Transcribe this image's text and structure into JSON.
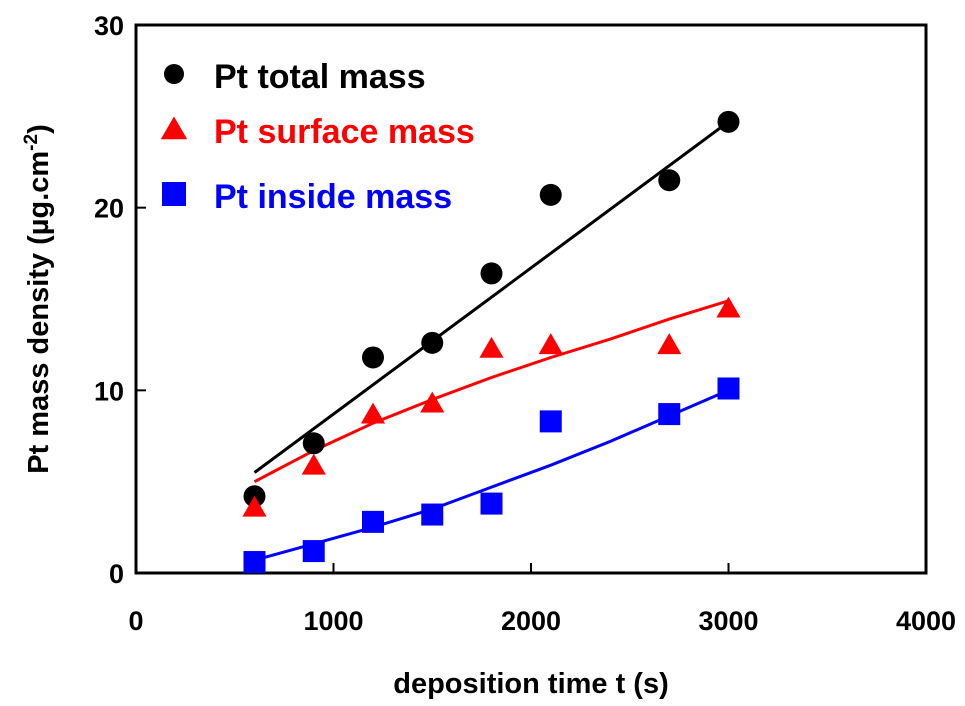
{
  "chart_data": {
    "type": "scatter",
    "title": "",
    "xlabel": "deposition time t (s)",
    "ylabel_main": "Pt mass density (µg.cm",
    "ylabel_sup": "-2",
    "ylabel_close": ")",
    "xlim": [
      0,
      4000
    ],
    "ylim": [
      0,
      30
    ],
    "xticks": [
      0,
      1000,
      2000,
      3000,
      4000
    ],
    "yticks": [
      0,
      10,
      20,
      30
    ],
    "grid": false,
    "legend_position": "top-left",
    "series": [
      {
        "name": "Pt total mass",
        "marker": "circle",
        "color": "#000000",
        "x": [
          600,
          900,
          1200,
          1500,
          1800,
          2100,
          2700,
          3000
        ],
        "y": [
          4.2,
          7.1,
          11.8,
          12.6,
          16.4,
          20.7,
          21.5,
          24.7
        ],
        "fit": {
          "kind": "linear",
          "x": [
            600,
            3000
          ],
          "y": [
            5.5,
            24.7
          ]
        }
      },
      {
        "name": "Pt surface mass",
        "marker": "triangle",
        "color": "#ff0000",
        "x": [
          600,
          900,
          1200,
          1500,
          1800,
          2100,
          2700,
          3000
        ],
        "y": [
          3.6,
          5.9,
          8.7,
          9.3,
          12.3,
          12.5,
          12.5,
          14.5
        ],
        "fit": {
          "kind": "curve",
          "x": [
            600,
            900,
            1200,
            1500,
            1800,
            2100,
            2400,
            2700,
            3000
          ],
          "y": [
            5.0,
            6.7,
            8.2,
            9.5,
            10.7,
            11.8,
            12.8,
            13.9,
            14.9
          ]
        }
      },
      {
        "name": "Pt inside mass",
        "marker": "square",
        "color": "#0000ff",
        "x": [
          600,
          900,
          1200,
          1500,
          1800,
          2100,
          2700,
          3000
        ],
        "y": [
          0.6,
          1.2,
          2.8,
          3.2,
          3.8,
          8.3,
          8.7,
          10.1
        ],
        "fit": {
          "kind": "curve",
          "x": [
            600,
            900,
            1200,
            1500,
            1800,
            2100,
            2400,
            2700,
            3000
          ],
          "y": [
            0.7,
            1.6,
            2.5,
            3.5,
            4.7,
            5.9,
            7.2,
            8.6,
            10.0
          ]
        }
      }
    ]
  }
}
